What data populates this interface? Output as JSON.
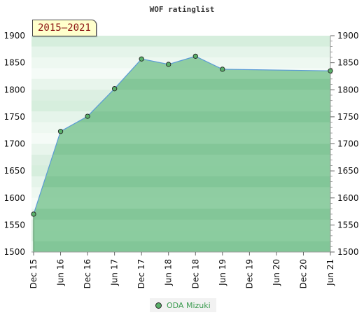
{
  "chart_data": {
    "type": "area",
    "title": "WOF ratinglist",
    "range_label": "2015–2021",
    "x": [
      "Dec 15",
      "Jun 16",
      "Dec 16",
      "Jun 17",
      "Dec 17",
      "Jun 18",
      "Dec 18",
      "Jun 19",
      "Dec 19",
      "Jun 20",
      "Dec 20",
      "Jun 21"
    ],
    "series": [
      {
        "name": "ODA Mizuki",
        "points": [
          {
            "x": "Dec 15",
            "y": 1570
          },
          {
            "x": "Jun 16",
            "y": 1723
          },
          {
            "x": "Dec 16",
            "y": 1751
          },
          {
            "x": "Jun 17",
            "y": 1802
          },
          {
            "x": "Dec 17",
            "y": 1857
          },
          {
            "x": "Jun 18",
            "y": 1847
          },
          {
            "x": "Dec 18",
            "y": 1862
          },
          {
            "x": "Jun 19",
            "y": 1838
          },
          {
            "x": "Jun 21",
            "y": 1835
          }
        ]
      }
    ],
    "ylim": [
      1500,
      1900
    ],
    "yticks": [
      1500,
      1550,
      1600,
      1650,
      1700,
      1750,
      1800,
      1850,
      1900
    ],
    "grid": true,
    "legend_position": "bottom-center"
  },
  "colors": {
    "area_fill": "#7ec594",
    "line": "#5b9bd5",
    "marker": "#5ab06a",
    "legend_text": "#3a9a4e"
  }
}
